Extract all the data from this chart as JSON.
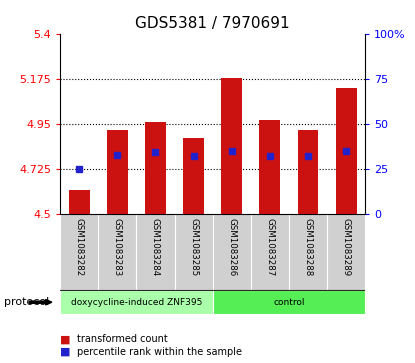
{
  "title": "GDS5381 / 7970691",
  "samples": [
    "GSM1083282",
    "GSM1083283",
    "GSM1083284",
    "GSM1083285",
    "GSM1083286",
    "GSM1083287",
    "GSM1083288",
    "GSM1083289"
  ],
  "bar_values": [
    4.62,
    4.92,
    4.96,
    4.88,
    5.18,
    4.97,
    4.92,
    5.13
  ],
  "bar_base": 4.5,
  "percentile_values": [
    4.725,
    4.795,
    4.81,
    4.79,
    4.815,
    4.79,
    4.79,
    4.815
  ],
  "bar_color": "#cc1111",
  "percentile_color": "#2222cc",
  "ylim_left": [
    4.5,
    5.4
  ],
  "ylim_right": [
    0,
    100
  ],
  "yticks_left": [
    4.5,
    4.725,
    4.95,
    5.175,
    5.4
  ],
  "ytick_labels_left": [
    "4.5",
    "4.725",
    "4.95",
    "5.175",
    "5.4"
  ],
  "yticks_right": [
    0,
    25,
    50,
    75,
    100
  ],
  "ytick_labels_right": [
    "0",
    "25",
    "50",
    "75",
    "100%"
  ],
  "gridlines_at": [
    4.725,
    4.95,
    5.175
  ],
  "protocol_groups": [
    {
      "label": "doxycycline-induced ZNF395",
      "start": 0,
      "end": 4,
      "color": "#aaffaa"
    },
    {
      "label": "control",
      "start": 4,
      "end": 8,
      "color": "#55ee55"
    }
  ],
  "protocol_label": "protocol",
  "legend_items": [
    {
      "color": "#cc1111",
      "label": "transformed count"
    },
    {
      "color": "#2222cc",
      "label": "percentile rank within the sample"
    }
  ],
  "bar_width": 0.55,
  "background_color": "#ffffff",
  "plot_bg_color": "#ffffff",
  "sample_box_color": "#d0d0d0",
  "title_fontsize": 11,
  "tick_fontsize": 8
}
